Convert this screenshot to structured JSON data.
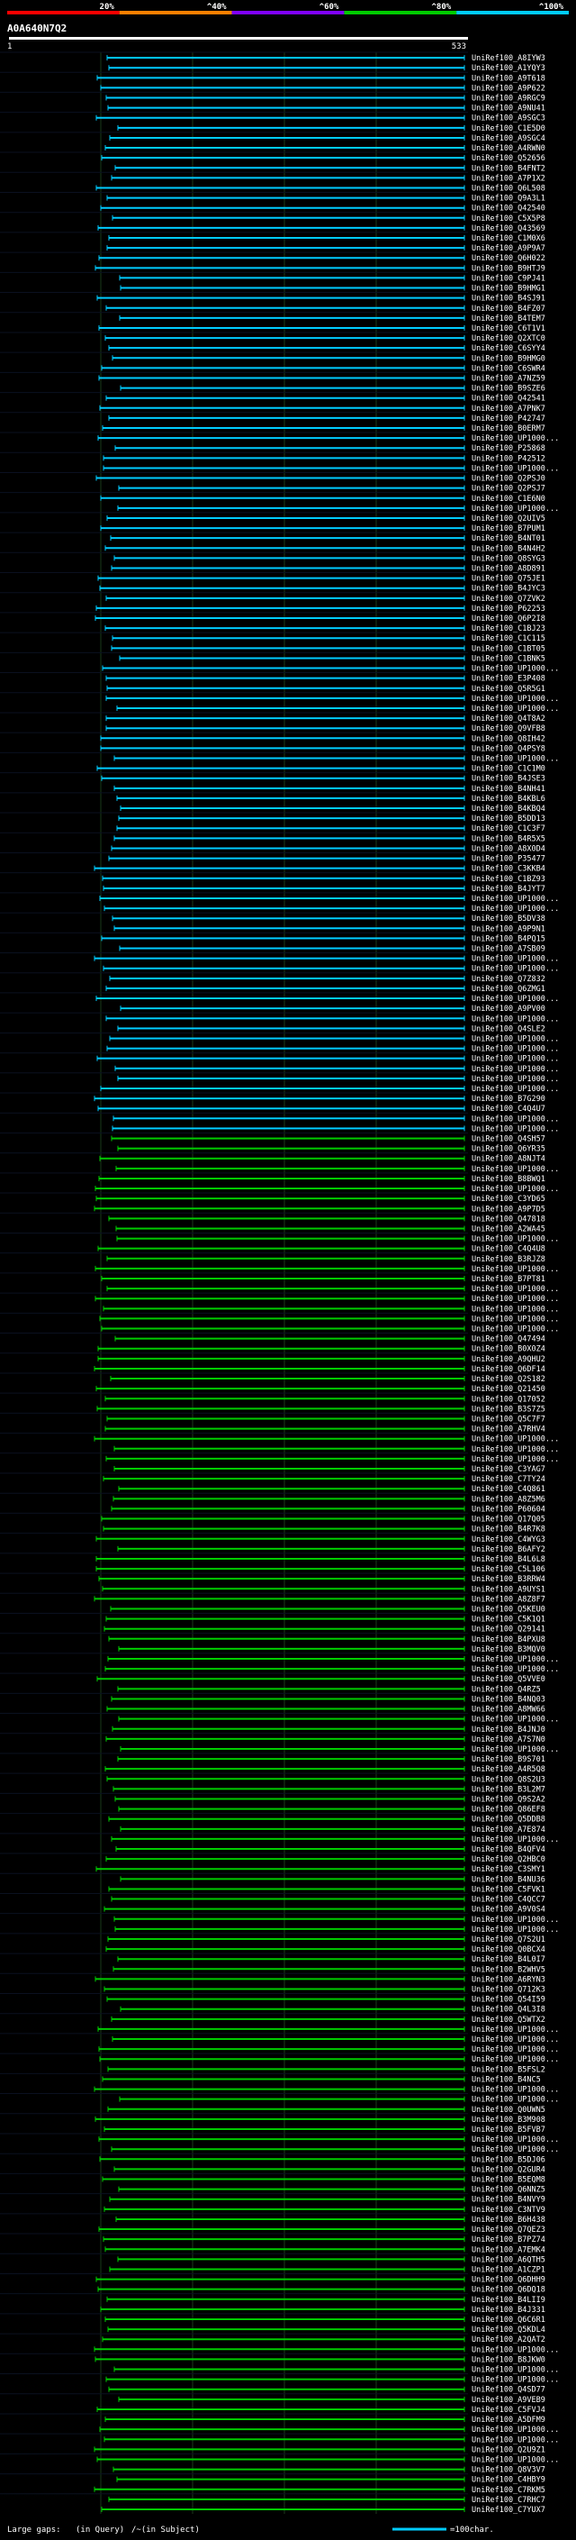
{
  "query_id": "A0A640N7Q2",
  "legend": {
    "labels": [
      "20%",
      "^40%",
      "^60%",
      "^80%",
      "^100%"
    ],
    "colors": [
      "#ff0000",
      "#ff7f00",
      "#7f00ff",
      "#00cc00",
      "#00ccff"
    ]
  },
  "footer": {
    "gaps_label": "Large gaps:",
    "query_gap": "(in Query)",
    "subject_gap": "/~(in Subject)",
    "scale_label": "=100char."
  },
  "chart_data": {
    "type": "alignment-overview",
    "title": "A0A640N7Q2",
    "axis": {
      "start_label": "1",
      "end_label": "533",
      "min": 1,
      "max": 533
    },
    "identity_color_bins": [
      {
        "label": "20%",
        "color": "#ff0000"
      },
      {
        "label": "^40%",
        "color": "#ff7f00"
      },
      {
        "label": "^60%",
        "color": "#7f00ff"
      },
      {
        "label": "^80%",
        "color": "#00cc00"
      },
      {
        "label": "^100%",
        "color": "#00ccff"
      }
    ],
    "hits": [
      "UniRef100_A8IYW3",
      "UniRef100_A1YQY3",
      "UniRef100_A9T618",
      "UniRef100_A9P622",
      "UniRef100_A9RGC9",
      "UniRef100_A9NU41",
      "UniRef100_A9SGC3",
      "UniRef100_C1E5D0",
      "UniRef100_A9SGC4",
      "UniRef100_A4RWN0",
      "UniRef100_Q52656",
      "UniRef100_B4FNT2",
      "UniRef100_A7P1X2",
      "UniRef100_Q6L508",
      "UniRef100_Q9A3L1",
      "UniRef100_Q42540",
      "UniRef100_C5X5P8",
      "UniRef100_Q43569",
      "UniRef100_C1M0X6",
      "UniRef100_A9P9A7",
      "UniRef100_Q6H022",
      "UniRef100_B9HTJ9",
      "UniRef100_C9PJ41",
      "UniRef100_B9HMG1",
      "UniRef100_B4SJ91",
      "UniRef100_B4FZ07",
      "UniRef100_B4TEM7",
      "UniRef100_C6T1V1",
      "UniRef100_Q2XTC0",
      "UniRef100_C6SYY4",
      "UniRef100_B9HMG0",
      "UniRef100_C6SWR4",
      "UniRef100_A7NZ59",
      "UniRef100_B9SZE6",
      "UniRef100_Q42541",
      "UniRef100_A7PNK7",
      "UniRef100_P42747",
      "UniRef100_B0ERM7",
      "UniRef100_UP1000...",
      "UniRef100_P25868",
      "UniRef100_P42512",
      "UniRef100_UP1000...",
      "UniRef100_Q2PSJ0",
      "UniRef100_Q2PSJ7",
      "UniRef100_C1E6N0",
      "UniRef100_UP1000...",
      "UniRef100_Q2UIV5",
      "UniRef100_B7PUM1",
      "UniRef100_B4NT01",
      "UniRef100_B4N4H2",
      "UniRef100_Q8SYG3",
      "UniRef100_A8D891",
      "UniRef100_Q75JE1",
      "UniRef100_B4JYC3",
      "UniRef100_Q7ZVK2",
      "UniRef100_P62253",
      "UniRef100_Q6P2I8",
      "UniRef100_C1BJ23",
      "UniRef100_C1C115",
      "UniRef100_C1BT05",
      "UniRef100_C1BNK5",
      "UniRef100_UP1000...",
      "UniRef100_E3P408",
      "UniRef100_Q5R5G1",
      "UniRef100_UP1000...",
      "UniRef100_UP1000...",
      "UniRef100_Q4T8A2",
      "UniRef100_Q9VFB8",
      "UniRef100_Q8IH42",
      "UniRef100_Q4PSY8",
      "UniRef100_UP1000...",
      "UniRef100_C1C1M0",
      "UniRef100_B4JSE3",
      "UniRef100_B4NH41",
      "UniRef100_B4KBL6",
      "UniRef100_B4KBQ4",
      "UniRef100_B5DD13",
      "UniRef100_C1C3F7",
      "UniRef100_B4R5X5",
      "UniRef100_A8X0D4",
      "UniRef100_P35477",
      "UniRef100_C3KKB4",
      "UniRef100_C1BZ93",
      "UniRef100_B4JYT7",
      "UniRef100_UP1000...",
      "UniRef100_UP1000...",
      "UniRef100_B5DV38",
      "UniRef100_A9P9N1",
      "UniRef100_B4PQ15",
      "UniRef100_A7SB09",
      "UniRef100_UP1000...",
      "UniRef100_UP1000...",
      "UniRef100_Q7Z832",
      "UniRef100_Q6ZMG1",
      "UniRef100_UP1000...",
      "UniRef100_A9PV00",
      "UniRef100_UP1000...",
      "UniRef100_Q4SLE2",
      "UniRef100_UP1000...",
      "UniRef100_UP1000...",
      "UniRef100_UP1000...",
      "UniRef100_UP1000...",
      "UniRef100_UP1000...",
      "UniRef100_UP1000...",
      "UniRef100_B7G290",
      "UniRef100_C4Q4U7",
      "UniRef100_UP1000...",
      "UniRef100_UP1000...",
      "UniRef100_Q4SH57",
      "UniRef100_Q6YR35",
      "UniRef100_A8NJT4",
      "UniRef100_UP1000...",
      "UniRef100_B8BWQ1",
      "UniRef100_UP1000...",
      "UniRef100_C3YD65",
      "UniRef100_A9P7D5",
      "UniRef100_Q47818",
      "UniRef100_A2WA45",
      "UniRef100_UP1000...",
      "UniRef100_C4Q4U8",
      "UniRef100_B3RJZ8",
      "UniRef100_UP1000...",
      "UniRef100_B7PT81",
      "UniRef100_UP1000...",
      "UniRef100_UP1000...",
      "UniRef100_UP1000...",
      "UniRef100_UP1000...",
      "UniRef100_UP1000...",
      "UniRef100_Q47494",
      "UniRef100_B0X0Z4",
      "UniRef100_A9QHU2",
      "UniRef100_Q6DF14",
      "UniRef100_Q2S182",
      "UniRef100_Q21450",
      "UniRef100_Q17052",
      "UniRef100_B3S7Z5",
      "UniRef100_Q5C7F7",
      "UniRef100_A7RHV4",
      "UniRef100_UP1000...",
      "UniRef100_UP1000...",
      "UniRef100_UP1000...",
      "UniRef100_C3YAG7",
      "UniRef100_C7TY24",
      "UniRef100_C4Q861",
      "UniRef100_A8Z5M6",
      "UniRef100_P60604",
      "UniRef100_Q17Q05",
      "UniRef100_B4R7K8",
      "UniRef100_C4WYG3",
      "UniRef100_B6AFY2",
      "UniRef100_B4L6L8",
      "UniRef100_C5L106",
      "UniRef100_B3RRW4",
      "UniRef100_A9UYS1",
      "UniRef100_A8Z8F7",
      "UniRef100_Q5KEU0",
      "UniRef100_C5K1Q1",
      "UniRef100_Q29141",
      "UniRef100_B4PXU8",
      "UniRef100_B3MQV0",
      "UniRef100_UP1000...",
      "UniRef100_UP1000...",
      "UniRef100_Q5VVE0",
      "UniRef100_Q4RZ5",
      "UniRef100_B4NQ03",
      "UniRef100_A8MW66",
      "UniRef100_UP1000...",
      "UniRef100_B4JNJ0",
      "UniRef100_A7S7N0",
      "UniRef100_UP1000...",
      "UniRef100_B9S701",
      "UniRef100_A4R5Q8",
      "UniRef100_Q8S2U3",
      "UniRef100_B3L2M7",
      "UniRef100_Q9S2A2",
      "UniRef100_Q86EF8",
      "UniRef100_Q5DDB8",
      "UniRef100_A7E874",
      "UniRef100_UP1000...",
      "UniRef100_B4QFV4",
      "UniRef100_Q2HBC0",
      "UniRef100_C3SMY1",
      "UniRef100_B4NU36",
      "UniRef100_C5FVK1",
      "UniRef100_C4QCC7",
      "UniRef100_A9V0S4",
      "UniRef100_UP1000...",
      "UniRef100_UP1000...",
      "UniRef100_Q7S2U1",
      "UniRef100_Q0BCX4",
      "UniRef100_B4L0I7",
      "UniRef100_B2WHV5",
      "UniRef100_A6RYN3",
      "UniRef100_Q712K3",
      "UniRef100_Q54I59",
      "UniRef100_Q4L3I8",
      "UniRef100_Q5WTX2",
      "UniRef100_UP1000...",
      "UniRef100_UP1000...",
      "UniRef100_UP1000...",
      "UniRef100_UP1000...",
      "UniRef100_B5FSL2",
      "UniRef100_B4NC5",
      "UniRef100_UP1000...",
      "UniRef100_UP1000...",
      "UniRef100_Q0UWN5",
      "UniRef100_B3M908",
      "UniRef100_B5FVB7",
      "UniRef100_UP1000...",
      "UniRef100_UP1000...",
      "UniRef100_B5DJ06",
      "UniRef100_Q2GUR4",
      "UniRef100_B5EQM8",
      "UniRef100_Q6NNZ5",
      "UniRef100_B4NVY9",
      "UniRef100_C3NTV9",
      "UniRef100_B6H438",
      "UniRef100_Q7QEZ3",
      "UniRef100_B7PZ74",
      "UniRef100_A7EMK4",
      "UniRef100_A6QTH5",
      "UniRef100_A1CZP1",
      "UniRef100_Q6DHH9",
      "UniRef100_Q6DQ18",
      "UniRef100_B4LII9",
      "UniRef100_B4J331",
      "UniRef100_Q6C6R1",
      "UniRef100_Q5KDL4",
      "UniRef100_A2QAT2",
      "UniRef100_UP1000...",
      "UniRef100_B8JKW0",
      "UniRef100_UP1000...",
      "UniRef100_UP1000...",
      "UniRef100_Q4SD77",
      "UniRef100_A9VEB9",
      "UniRef100_C5FVJ4",
      "UniRef100_A5DFM9",
      "UniRef100_UP1000...",
      "UniRef100_UP1000...",
      "UniRef100_Q2U9Z1",
      "UniRef100_UP1000...",
      "UniRef100_Q8V3V7",
      "UniRef100_C4HBY9",
      "UniRef100_C7RKM5",
      "UniRef100_C7RHC7",
      "UniRef100_C7YUX7"
    ]
  }
}
